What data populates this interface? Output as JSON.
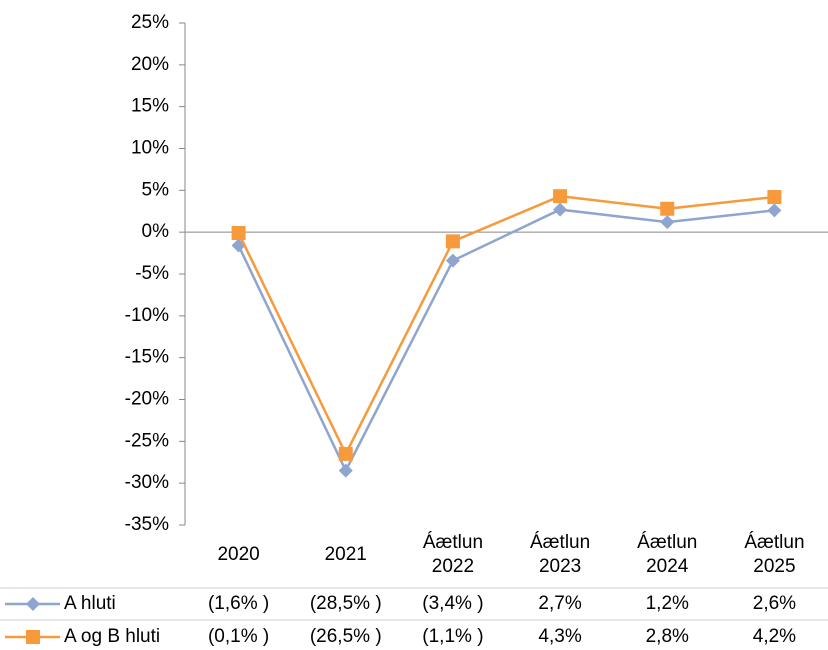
{
  "chart_data": {
    "type": "line",
    "categories": [
      "2020",
      "2021",
      "Áætlun 2022",
      "Áætlun 2023",
      "Áætlun 2024",
      "Áætlun 2025"
    ],
    "series": [
      {
        "name": "A hluti",
        "color": "#8ea6cf",
        "marker": "diamond",
        "values": [
          -1.6,
          -28.5,
          -3.4,
          2.7,
          1.2,
          2.6
        ],
        "value_labels": [
          "(1,6% )",
          "(28,5% )",
          "(3,4% )",
          "2,7%",
          "1,2%",
          "2,6%"
        ]
      },
      {
        "name": "A og B hluti",
        "color": "#f79a3c",
        "marker": "square",
        "values": [
          -0.1,
          -26.5,
          -1.1,
          4.3,
          2.8,
          4.2
        ],
        "value_labels": [
          "(0,1% )",
          "(26,5% )",
          "(1,1% )",
          "4,3%",
          "2,8%",
          "4,2%"
        ]
      }
    ],
    "ylim": [
      -35,
      25
    ],
    "yticks": [
      {
        "value": 25,
        "label": "25%"
      },
      {
        "value": 20,
        "label": "20%"
      },
      {
        "value": 15,
        "label": "15%"
      },
      {
        "value": 10,
        "label": "10%"
      },
      {
        "value": 5,
        "label": "5%"
      },
      {
        "value": 0,
        "label": "0%"
      },
      {
        "value": -5,
        "label": "-5%"
      },
      {
        "value": -10,
        "label": "-10%"
      },
      {
        "value": -15,
        "label": "-15%"
      },
      {
        "value": -20,
        "label": "-20%"
      },
      {
        "value": -25,
        "label": "-25%"
      },
      {
        "value": -30,
        "label": "-30%"
      },
      {
        "value": -35,
        "label": "-35%"
      }
    ]
  }
}
